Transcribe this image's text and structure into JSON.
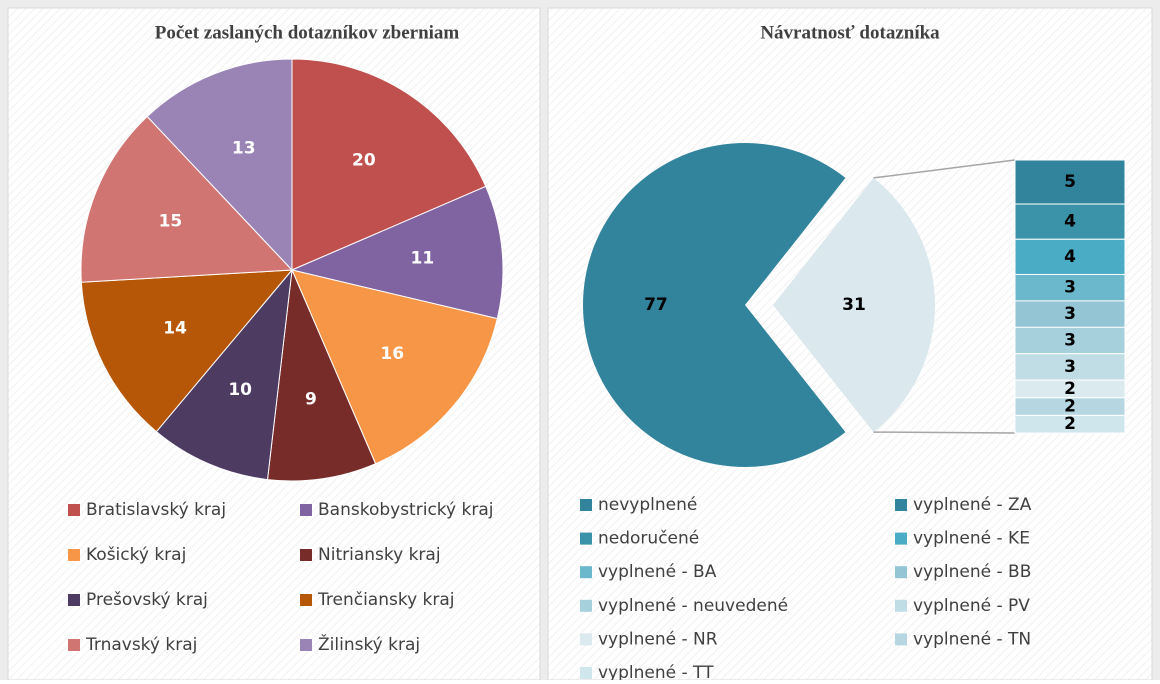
{
  "chart_data": [
    {
      "type": "pie",
      "title": "Počet zaslaných dotazníkov zberniam",
      "categories": [
        "Bratislavský kraj",
        "Banskobystrický kraj",
        "Košický kraj",
        "Nitriansky kraj",
        "Prešovský kraj",
        "Trenčiansky kraj",
        "Trnavský kraj",
        "Žilinský kraj"
      ],
      "values": [
        20,
        11,
        16,
        9,
        10,
        14,
        15,
        13
      ],
      "colors": [
        "#c0504d",
        "#8064a2",
        "#f79646",
        "#772c2a",
        "#4d3b62",
        "#b65708",
        "#d07572",
        "#9a84b6"
      ]
    },
    {
      "type": "bar_of_pie",
      "title": "Návratnosť dotazníka",
      "categories": [
        "nevyplnené",
        "vyplnené - ZA",
        "nedoručené",
        "vyplnené - KE",
        "vyplnené - BA",
        "vyplnené - BB",
        "vyplnené - neuvedené",
        "vyplnené - PV",
        "vyplnené - NR",
        "vyplnené - TN",
        "vyplnené - TT"
      ],
      "values": [
        77,
        5,
        4,
        4,
        3,
        3,
        3,
        3,
        2,
        2,
        2
      ],
      "colors": [
        "#31849b",
        "#31849b",
        "#3a93a8",
        "#4bacc6",
        "#6bb8cc",
        "#93c5d4",
        "#a5d0dc",
        "#c0dde6",
        "#dbeaef",
        "#b6d7e2",
        "#d0e6ed"
      ],
      "other_total": 31,
      "other_color": "#dbe8ee"
    }
  ]
}
